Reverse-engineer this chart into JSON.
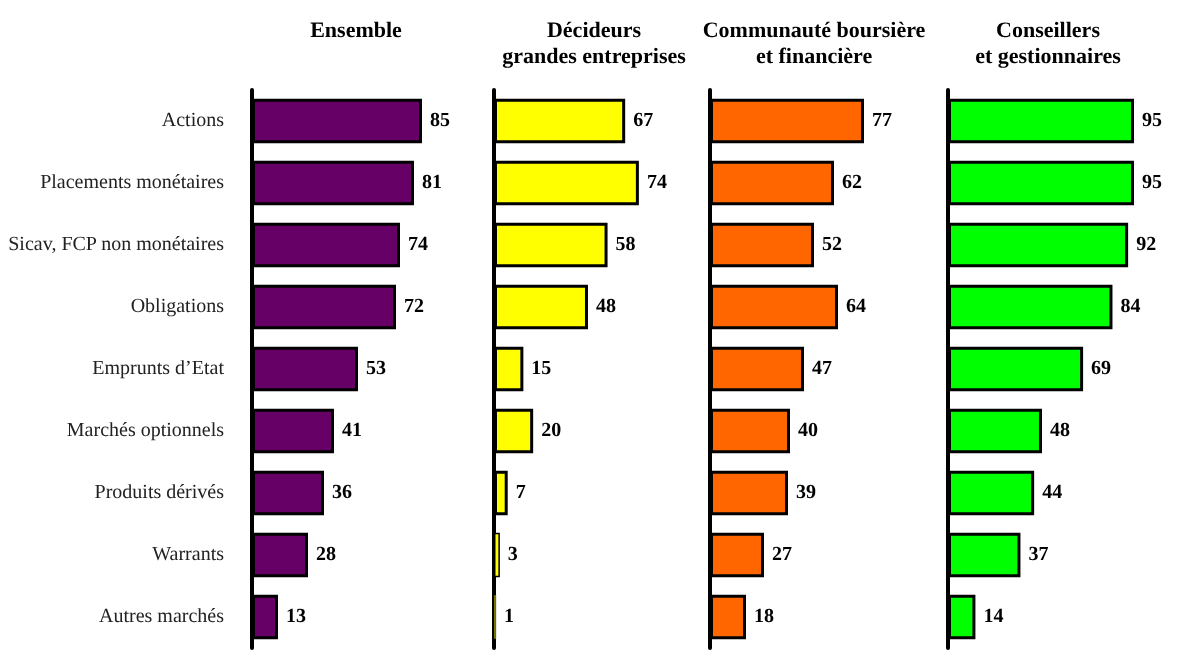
{
  "chart_data": [
    {
      "type": "bar",
      "orientation": "horizontal",
      "title": "Ensemble",
      "categories": [
        "Actions",
        "Placements monétaires",
        "Sicav, FCP non monétaires",
        "Obligations",
        "Emprunts d’Etat",
        "Marchés optionnels",
        "Produits dérivés",
        "Warrants",
        "Autres marchés"
      ],
      "values": [
        85,
        81,
        74,
        72,
        53,
        41,
        36,
        28,
        13
      ],
      "color": "#660066",
      "data_labels": true,
      "tick_labels": "y"
    },
    {
      "type": "bar",
      "orientation": "horizontal",
      "title": "Décideurs\ngrandes entreprises",
      "categories": [
        null,
        null,
        null,
        null,
        null,
        null,
        null,
        null,
        null
      ],
      "values": [
        67,
        74,
        58,
        48,
        15,
        20,
        7,
        3,
        1
      ],
      "color": "#ffff00",
      "data_labels": true
    },
    {
      "type": "bar",
      "orientation": "horizontal",
      "title": "Communauté boursière\net financière",
      "categories": [
        null,
        null,
        null,
        null,
        null,
        null,
        null,
        null,
        null
      ],
      "values": [
        77,
        62,
        52,
        64,
        47,
        40,
        39,
        27,
        18
      ],
      "color": "#ff6600",
      "data_labels": true
    },
    {
      "type": "bar",
      "orientation": "horizontal",
      "title": "Conseillers\net gestionnaires",
      "categories": [
        null,
        null,
        null,
        null,
        null,
        null,
        null,
        null,
        null
      ],
      "values": [
        95,
        95,
        92,
        84,
        69,
        48,
        44,
        37,
        14
      ],
      "color": "#00ff00",
      "data_labels": true
    }
  ]
}
